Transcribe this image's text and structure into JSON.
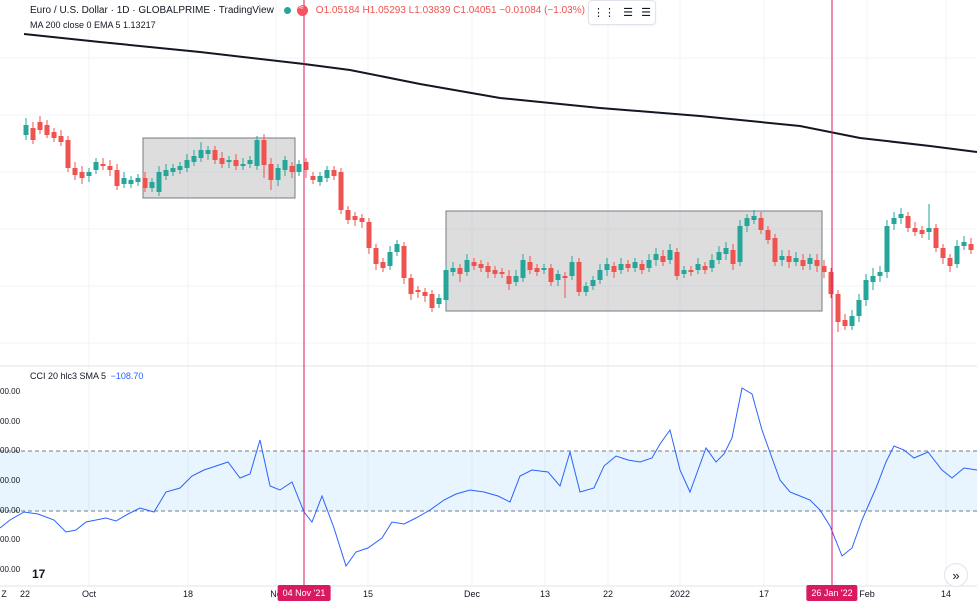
{
  "legend": {
    "symbol": "Euro / U.S. Dollar · 1D · GLOBALPRIME · TradingView",
    "open": "O1.05184",
    "high": "H1.05293",
    "low": "L1.03839",
    "close": "C1.04051",
    "change": "−0.01084 (−1.03%)"
  },
  "ma_legend": "MA 200 close 0 EMA 5  1.13217",
  "cci_legend": {
    "label": "CCI 20 hlc3 SMA 5",
    "value": "−108.70"
  },
  "cci_scale": [
    "00.00",
    "00.00",
    "00.00",
    "00.00",
    "00.00",
    "00.00",
    "00.00"
  ],
  "time_axis": {
    "ticks": [
      "22",
      "Oct",
      "18",
      "No",
      "15",
      "Dec",
      "13",
      "22",
      "2022",
      "17",
      "Feb",
      "14",
      "Z"
    ],
    "markers": [
      "04 Nov '21",
      "26 Jan '22"
    ]
  },
  "logo": "17",
  "nav_button": "»",
  "colors": {
    "up": "#26a69a",
    "down": "#ef5350",
    "ma": "#131722",
    "cci": "#2962ff",
    "cci_band": "#e3f2fd",
    "marker": "#d81b60"
  },
  "icons": [
    "settings-sliders-icon",
    "settings-sliders-icon",
    "tradingview-logo-icon",
    "chevrons-right-icon"
  ],
  "chart_data": {
    "type": "candlestick",
    "candles_close_trend": [
      1.158,
      1.159,
      1.16,
      1.157,
      1.1545,
      1.152,
      1.16,
      1.163,
      1.162,
      1.1585,
      1.1595,
      1.161,
      1.1535,
      1.146,
      1.137,
      1.13,
      1.132,
      1.129,
      1.12,
      1.127,
      1.125,
      1.126,
      1.13,
      1.122,
      1.126,
      1.13,
      1.136,
      1.132,
      1.129,
      1.134,
      1.1355,
      1.138,
      1.131,
      1.125,
      1.116,
      1.115,
      1.113,
      1.121,
      1.136,
      1.142,
      1.145,
      1.14,
      1.133
    ],
    "ma_200": "declining",
    "cci_band": [
      -100,
      100
    ]
  }
}
